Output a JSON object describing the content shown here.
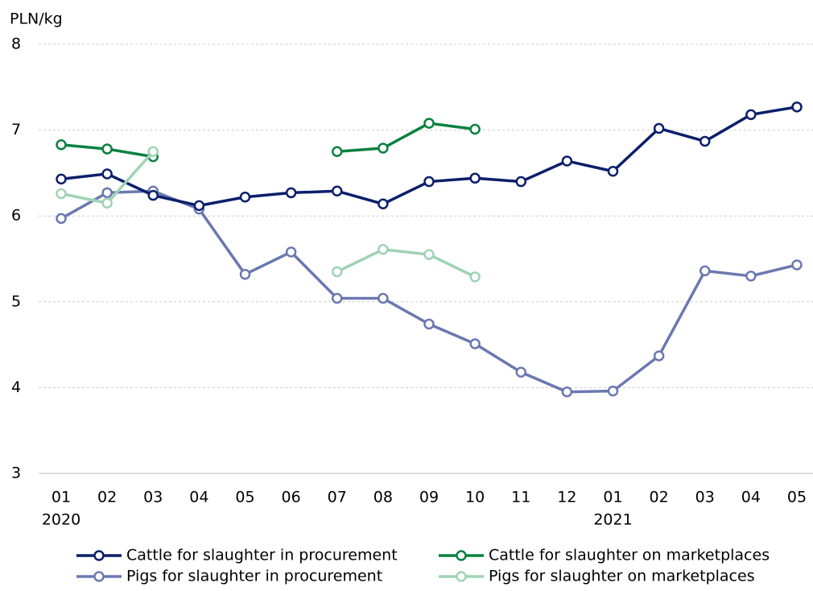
{
  "chart_data": {
    "type": "line",
    "y_axis_label": "PLN/kg",
    "categories": [
      "01",
      "02",
      "03",
      "04",
      "05",
      "06",
      "07",
      "08",
      "09",
      "10",
      "11",
      "12",
      "01",
      "02",
      "03",
      "04",
      "05"
    ],
    "year_labels": [
      "2020",
      null,
      null,
      null,
      null,
      null,
      null,
      null,
      null,
      null,
      null,
      null,
      "2021",
      null,
      null,
      null,
      null
    ],
    "series": [
      {
        "name": "Cattle for slaughter in procurement",
        "color": "#0b1f6b",
        "values": [
          6.43,
          6.49,
          6.24,
          6.12,
          6.22,
          6.27,
          6.29,
          6.14,
          6.4,
          6.44,
          6.4,
          6.64,
          6.52,
          7.02,
          6.87,
          7.18,
          7.27
        ]
      },
      {
        "name": "Cattle for slaughter on marketplaces",
        "color": "#0a8040",
        "values": [
          6.83,
          6.78,
          6.69,
          null,
          null,
          null,
          6.75,
          6.79,
          7.08,
          7.01,
          null,
          null,
          null,
          null,
          null,
          null,
          null
        ]
      },
      {
        "name": "Pigs for slaughter in procurement",
        "color": "#6b78b0",
        "values": [
          5.97,
          6.27,
          6.29,
          6.08,
          5.32,
          5.58,
          5.04,
          5.04,
          4.74,
          4.51,
          4.18,
          3.95,
          3.96,
          4.37,
          5.36,
          5.3,
          5.43
        ]
      },
      {
        "name": "Pigs for slaughter on marketplaces",
        "color": "#9fd3b4",
        "values": [
          6.26,
          6.15,
          6.75,
          null,
          null,
          null,
          5.35,
          5.61,
          5.55,
          5.29,
          null,
          null,
          null,
          null,
          null,
          null,
          null
        ]
      }
    ],
    "ylim": [
      3,
      8
    ],
    "yticks": [
      3,
      4,
      5,
      6,
      7,
      8
    ],
    "grid": true
  }
}
